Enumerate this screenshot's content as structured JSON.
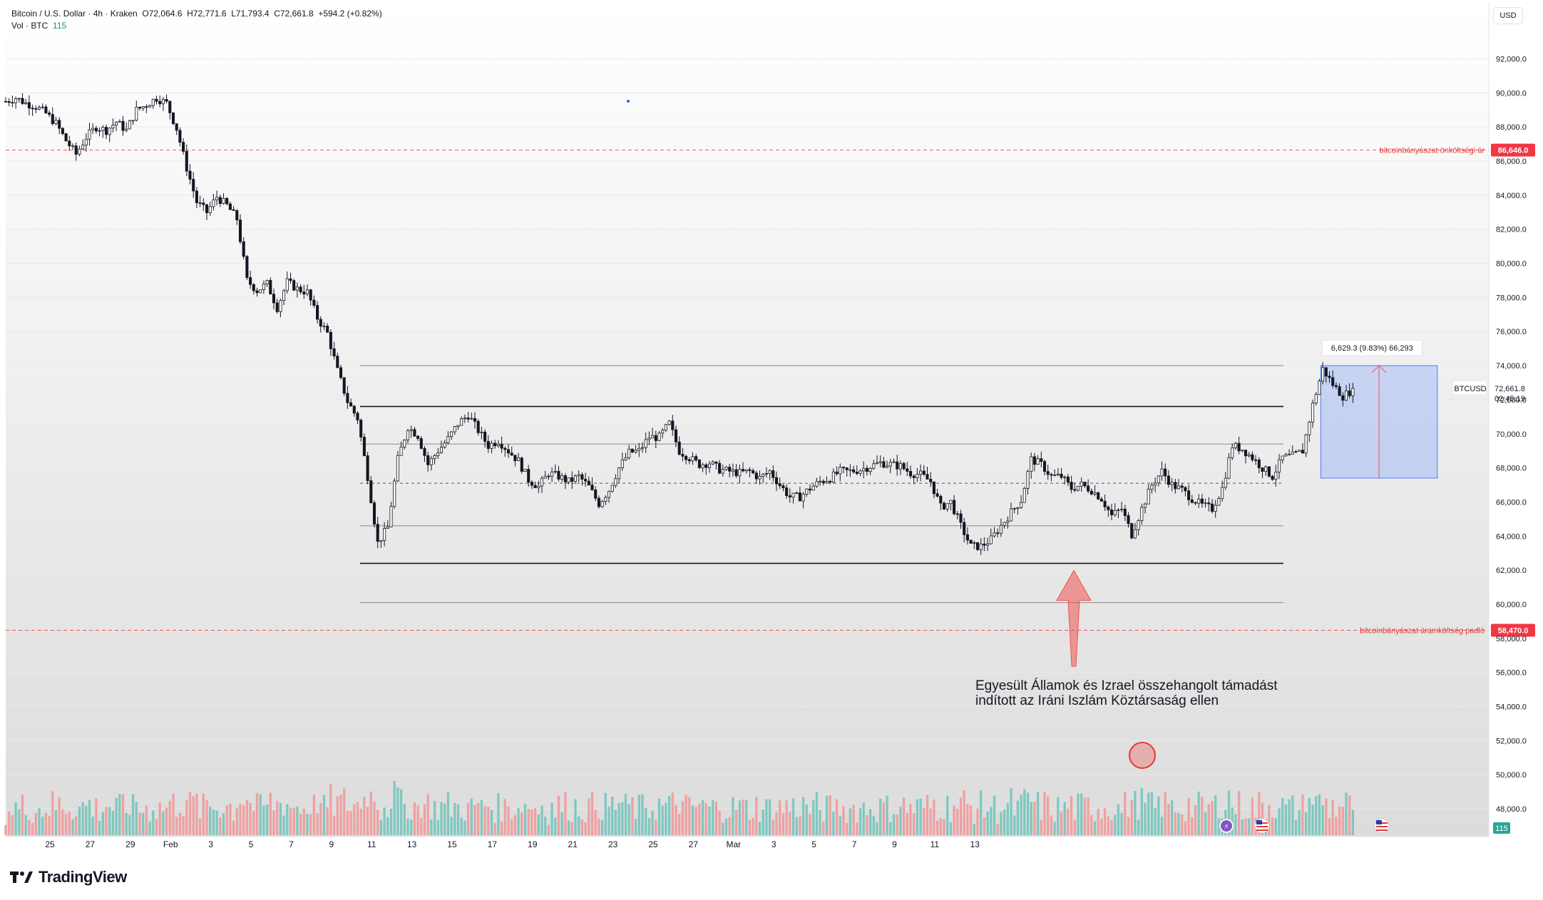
{
  "header": {
    "line1": "Bitcoin / U.S. Dollar · 4h · Kraken",
    "open": "O72,064.6",
    "high": "H72,771.6",
    "low": "L71,793.4",
    "close": "C72,661.8",
    "change": "+594.2 (+0.82%)",
    "vol_label": "Vol · BTC",
    "vol_value": "115"
  },
  "currency_button": "USD",
  "brand": "TradingView",
  "colors": {
    "up": "#26a69a",
    "down": "#ef5350",
    "vol_up": "#7ec8c0",
    "vol_down": "#f0a0a0",
    "accent": "#2962ff",
    "hline": "#131722"
  },
  "chart_data": {
    "type": "candlestick",
    "symbol": "BTCUSD",
    "interval": "4h",
    "ylim": [
      46800,
      93500
    ],
    "y_ticks": [
      48000,
      50000,
      52000,
      54000,
      56000,
      58000,
      60000,
      62000,
      64000,
      66000,
      68000,
      70000,
      72000,
      74000,
      76000,
      78000,
      80000,
      82000,
      84000,
      86000,
      88000,
      90000,
      92000
    ],
    "x_ticks": [
      "25",
      "27",
      "29",
      "Feb",
      "3",
      "5",
      "7",
      "9",
      "11",
      "13",
      "15",
      "17",
      "19",
      "21",
      "23",
      "25",
      "27",
      "Mar",
      "3",
      "5",
      "7",
      "9",
      "11",
      "13"
    ],
    "last_price": {
      "value": 72661.8,
      "label": "72,661.8",
      "countdown": "02:45:19",
      "symbol": "BTCUSD"
    },
    "volume_last": "115",
    "price_series": [
      [
        0,
        89500
      ],
      [
        0.5,
        89700
      ],
      [
        1,
        89400
      ],
      [
        1.5,
        89200
      ],
      [
        2,
        88800
      ],
      [
        2.5,
        88200
      ],
      [
        3,
        87200
      ],
      [
        3.5,
        86400
      ],
      [
        4,
        87400
      ],
      [
        4.5,
        88000
      ],
      [
        5,
        87800
      ],
      [
        5.5,
        88300
      ],
      [
        6,
        87800
      ],
      [
        6.5,
        89000
      ],
      [
        7,
        89300
      ],
      [
        7.5,
        89700
      ],
      [
        8,
        89400
      ],
      [
        8.5,
        87900
      ],
      [
        9,
        85600
      ],
      [
        9.5,
        83600
      ],
      [
        10,
        83000
      ],
      [
        10.5,
        83900
      ],
      [
        11,
        83400
      ],
      [
        11.5,
        82600
      ],
      [
        12,
        79000
      ],
      [
        12.5,
        78400
      ],
      [
        13,
        78800
      ],
      [
        13.5,
        77400
      ],
      [
        14,
        78900
      ],
      [
        14.5,
        78500
      ],
      [
        15,
        78300
      ],
      [
        15.5,
        76800
      ],
      [
        16,
        75900
      ],
      [
        16.5,
        73700
      ],
      [
        17,
        71900
      ],
      [
        17.5,
        70900
      ],
      [
        18,
        67500
      ],
      [
        18.5,
        63600
      ],
      [
        19,
        64500
      ],
      [
        19.5,
        68500
      ],
      [
        20,
        70400
      ],
      [
        20.5,
        69900
      ],
      [
        21,
        68200
      ],
      [
        21.5,
        69000
      ],
      [
        22,
        69700
      ],
      [
        22.5,
        70600
      ],
      [
        23,
        71100
      ],
      [
        23.5,
        70200
      ],
      [
        24,
        69300
      ],
      [
        24.5,
        69600
      ],
      [
        25,
        69000
      ],
      [
        25.5,
        68400
      ],
      [
        26,
        67300
      ],
      [
        26.5,
        66900
      ],
      [
        27,
        67700
      ],
      [
        27.5,
        67500
      ],
      [
        28,
        67200
      ],
      [
        28.5,
        67500
      ],
      [
        29,
        66900
      ],
      [
        29.5,
        65900
      ],
      [
        30,
        66700
      ],
      [
        30.5,
        68000
      ],
      [
        31,
        68900
      ],
      [
        31.5,
        69000
      ],
      [
        32,
        69800
      ],
      [
        32.5,
        69800
      ],
      [
        33,
        70600
      ],
      [
        33.5,
        69000
      ],
      [
        34,
        68600
      ],
      [
        34.5,
        68200
      ],
      [
        35,
        68300
      ],
      [
        35.5,
        67900
      ],
      [
        36,
        67800
      ],
      [
        36.5,
        67700
      ],
      [
        37,
        67800
      ],
      [
        37.5,
        67400
      ],
      [
        38,
        67800
      ],
      [
        38.5,
        67000
      ],
      [
        39,
        66300
      ],
      [
        39.5,
        66300
      ],
      [
        40,
        66800
      ],
      [
        40.5,
        67200
      ],
      [
        41,
        67400
      ],
      [
        41.5,
        67800
      ],
      [
        42,
        67800
      ],
      [
        42.5,
        67900
      ],
      [
        43,
        68100
      ],
      [
        43.5,
        68300
      ],
      [
        44,
        68200
      ],
      [
        44.5,
        68100
      ],
      [
        45,
        67700
      ],
      [
        45.5,
        67600
      ],
      [
        46,
        67200
      ],
      [
        46.5,
        65700
      ],
      [
        47,
        66000
      ],
      [
        47.5,
        64600
      ],
      [
        48,
        63400
      ],
      [
        48.5,
        63400
      ],
      [
        49,
        63800
      ],
      [
        49.5,
        64600
      ],
      [
        50,
        65400
      ],
      [
        50.5,
        66100
      ],
      [
        51,
        68500
      ],
      [
        51.5,
        68200
      ],
      [
        52,
        67500
      ],
      [
        52.5,
        67500
      ],
      [
        53,
        66800
      ],
      [
        53.5,
        67000
      ],
      [
        54,
        66700
      ],
      [
        54.5,
        66200
      ],
      [
        55,
        65200
      ],
      [
        55.5,
        65600
      ],
      [
        56,
        64100
      ],
      [
        56.5,
        65600
      ],
      [
        57,
        67000
      ],
      [
        57.5,
        67800
      ],
      [
        58,
        67000
      ],
      [
        58.5,
        66700
      ],
      [
        59,
        66200
      ],
      [
        59.5,
        65800
      ],
      [
        60,
        65600
      ],
      [
        60.5,
        66800
      ],
      [
        61,
        69300
      ],
      [
        61.5,
        69100
      ],
      [
        62,
        68600
      ],
      [
        62.5,
        68000
      ],
      [
        63,
        67500
      ],
      [
        63.5,
        68600
      ],
      [
        64,
        68700
      ],
      [
        64.5,
        69000
      ],
      [
        65,
        71700
      ],
      [
        65.5,
        73800
      ],
      [
        66,
        72900
      ],
      [
        66.5,
        72200
      ],
      [
        67,
        72600
      ]
    ],
    "levels": [
      {
        "price": 74000,
        "style": "thin"
      },
      {
        "price": 71600,
        "style": "thick"
      },
      {
        "price": 69400,
        "style": "thin"
      },
      {
        "price": 67100,
        "style": "dashed"
      },
      {
        "price": 64600,
        "style": "thin"
      },
      {
        "price": 62400,
        "style": "thick"
      },
      {
        "price": 60100,
        "style": "thin"
      }
    ],
    "red_levels": [
      {
        "price": 86646,
        "label": "bitcoinbányászat önköltségi ár",
        "badge": "86,646.0"
      },
      {
        "price": 58470,
        "label": "bitcoinbányászat áramköltség padló",
        "badge": "58,470.0"
      }
    ],
    "measure_box": {
      "x0": 65.4,
      "x1": 71.2,
      "y0": 67400,
      "y1": 74000,
      "label": "6,629.3 (9.83%) 66,293"
    },
    "annotation": {
      "line1": "Egyesült Államok és Izrael összehangolt támadást",
      "line2": "indított az Iráni Iszlám Köztársaság ellen"
    }
  }
}
